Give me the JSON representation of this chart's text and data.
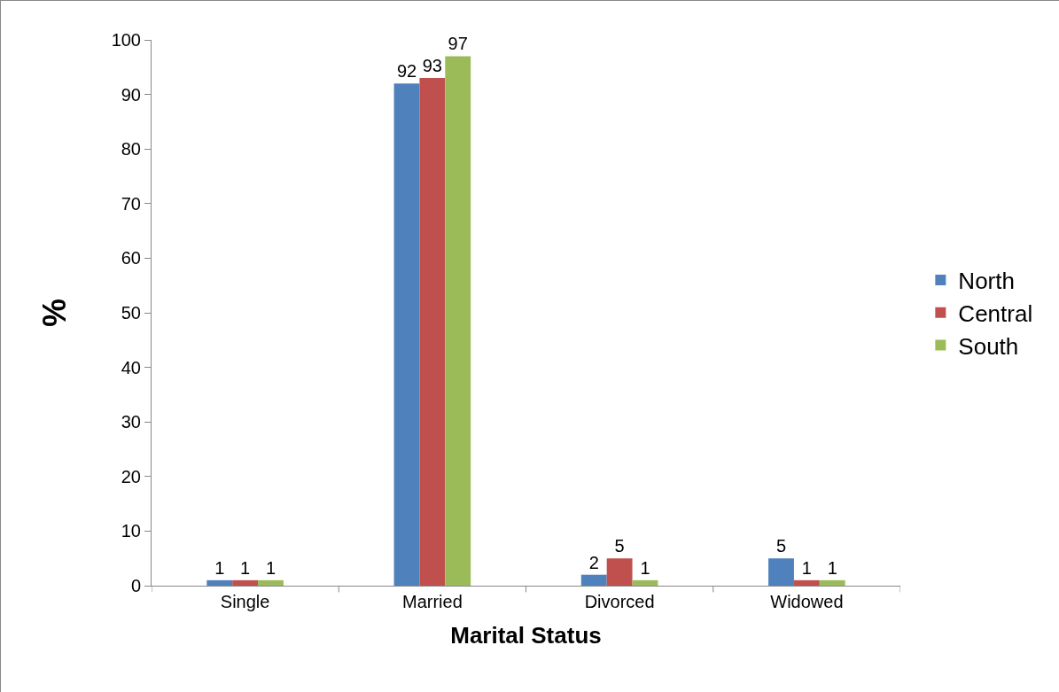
{
  "chart_data": {
    "type": "bar",
    "xlabel": "Marital Status",
    "ylabel": "%",
    "categories": [
      "Single",
      "Married",
      "Divorced",
      "Widowed"
    ],
    "series": [
      {
        "name": "North",
        "color": "#4f81bd",
        "values": [
          1,
          92,
          2,
          5
        ]
      },
      {
        "name": "Central",
        "color": "#c0504d",
        "values": [
          1,
          93,
          5,
          1
        ]
      },
      {
        "name": "South",
        "color": "#9bbb59",
        "values": [
          1,
          97,
          1,
          1
        ]
      }
    ],
    "ylim": [
      0,
      100
    ],
    "yticks": [
      0,
      10,
      20,
      30,
      40,
      50,
      60,
      70,
      80,
      90,
      100
    ],
    "grid": false,
    "legend": "right",
    "data_labels": true
  }
}
